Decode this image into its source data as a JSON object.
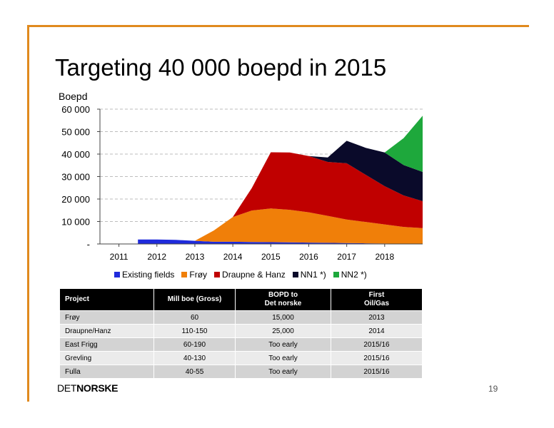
{
  "title": "Targeting 40 000 boepd in 2015",
  "chart_data": {
    "type": "area",
    "stacked": true,
    "ylabel": "Boepd",
    "categories": [
      "2011",
      "2012",
      "2013",
      "2014",
      "2015",
      "2016",
      "2017",
      "2018"
    ],
    "x": [
      2011,
      2011.5,
      2012,
      2012.5,
      2013,
      2013.5,
      2014,
      2014.5,
      2015,
      2015.5,
      2016,
      2016.5,
      2017,
      2017.5,
      2018,
      2018.5,
      2019
    ],
    "ylim": [
      0,
      60000
    ],
    "yticks": [
      0,
      10000,
      20000,
      30000,
      40000,
      50000,
      60000
    ],
    "ytick_labels": [
      "-",
      "10 000",
      "20 000",
      "30 000",
      "40 000",
      "50 000",
      "60 000"
    ],
    "grid": true,
    "legend_position": "bottom",
    "series": [
      {
        "name": "Existing fields",
        "color": "#1f2bdc",
        "values": [
          null,
          2000,
          2000,
          1800,
          1400,
          1000,
          1000,
          900,
          800,
          700,
          600,
          500,
          400,
          300,
          200,
          100,
          50
        ]
      },
      {
        "name": "Frøy",
        "color": "#f07f09",
        "values": [
          null,
          0,
          0,
          0,
          0,
          5000,
          11000,
          14000,
          15000,
          14500,
          13500,
          12000,
          10500,
          9500,
          8500,
          7500,
          7000
        ]
      },
      {
        "name": "Draupne & Hanz",
        "color": "#c00000",
        "values": [
          null,
          0,
          0,
          0,
          0,
          0,
          0,
          10000,
          25000,
          25500,
          25000,
          24000,
          25000,
          21000,
          17000,
          14000,
          12000
        ]
      },
      {
        "name": "NN1 *)",
        "color": "#0a0a2a",
        "values": [
          null,
          0,
          0,
          0,
          0,
          0,
          0,
          0,
          0,
          0,
          0,
          2000,
          10000,
          12000,
          15000,
          13500,
          13000
        ]
      },
      {
        "name": "NN2 *)",
        "color": "#1ea83c",
        "values": [
          null,
          0,
          0,
          0,
          0,
          0,
          0,
          0,
          0,
          0,
          0,
          0,
          0,
          0,
          0,
          12000,
          25000
        ]
      }
    ]
  },
  "legend": [
    {
      "name": "Existing fields",
      "color": "#1f2bdc"
    },
    {
      "name": "Frøy",
      "color": "#f07f09"
    },
    {
      "name": "Draupne & Hanz",
      "color": "#c00000"
    },
    {
      "name": "NN1 *)",
      "color": "#0a0a2a"
    },
    {
      "name": "NN2 *)",
      "color": "#1ea83c"
    }
  ],
  "table": {
    "headers": [
      "Project",
      "Mill boe (Gross)",
      "BOPD to\nDet norske",
      "First\nOil/Gas"
    ],
    "rows": [
      [
        "Frøy",
        "60",
        "15,000",
        "2013"
      ],
      [
        "Draupne/Hanz",
        "110-150",
        "25,000",
        "2014"
      ],
      [
        "East Frigg",
        "60-190",
        "Too early",
        "2015/16"
      ],
      [
        "Grevling",
        "40-130",
        "Too early",
        "2015/16"
      ],
      [
        "Fulla",
        "40-55",
        "Too early",
        "2015/16"
      ]
    ]
  },
  "logo": {
    "part1": "DET",
    "part2": "NORSKE"
  },
  "page_number": "19"
}
